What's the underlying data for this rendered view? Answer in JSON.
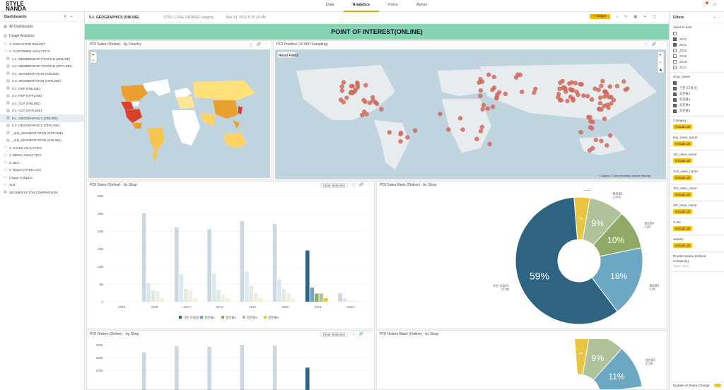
{
  "brand": {
    "logo_line1": "STYLE",
    "logo_line2": "NANDA"
  },
  "topnav": {
    "items": [
      "Data",
      "Analytics",
      "Pulse",
      "Admin"
    ],
    "active": "Analytics"
  },
  "sidebar": {
    "title": "Dashboards",
    "items": [
      {
        "label": "All Dashboards",
        "level": 0,
        "icon": "grid-icon"
      },
      {
        "label": "Usage Analytics",
        "level": 0,
        "icon": "chart-icon"
      },
      {
        "label": "1. EXECUTIVE INSIGHT",
        "level": 0,
        "icon": "folder-icon"
      },
      {
        "label": "2. CUSTOMER ANALYTICS",
        "level": 0,
        "icon": "folder-open-icon"
      },
      {
        "label": "1-1. MEMBERSHIP PROFILE (ONLINE)",
        "level": 1,
        "icon": "dashboard-icon"
      },
      {
        "label": "1-2. MEMBERSHIP PROFILE (OFFLINE)",
        "level": 1,
        "icon": "dashboard-icon"
      },
      {
        "label": "2-1. SEGMENTATION (ONLINE)",
        "level": 1,
        "icon": "dashboard-icon"
      },
      {
        "label": "2-2. SEGMENTATION (OFFLINE)",
        "level": 1,
        "icon": "dashboard-icon"
      },
      {
        "label": "3-1. RSP (ONLINE)",
        "level": 1,
        "icon": "dashboard-icon"
      },
      {
        "label": "3-2. RSP (OFFLINE)",
        "level": 1,
        "icon": "dashboard-icon"
      },
      {
        "label": "4-1. ACP (ONLINE)",
        "level": 1,
        "icon": "dashboard-icon"
      },
      {
        "label": "4-2. ACP (OFFLINE)",
        "level": 1,
        "icon": "dashboard-icon"
      },
      {
        "label": "5-1. GEOGRAPHICS (ONLINE)",
        "level": 1,
        "icon": "dashboard-icon",
        "active": true
      },
      {
        "label": "5-2. GEOGRAPHICS (OFFLINE)",
        "level": 1,
        "icon": "dashboard-icon"
      },
      {
        "label": "_drill_SEGMENTATION (OFFLINE)",
        "level": 1,
        "icon": "dashboard-icon"
      },
      {
        "label": "_drill_SEGMENTATION (ONLINE)",
        "level": 1,
        "icon": "dashboard-icon"
      },
      {
        "label": "3. SALES ANALYTICS",
        "level": 0,
        "icon": "folder-icon"
      },
      {
        "label": "4. MEDIA ANALYTICS",
        "level": 0,
        "icon": "folder-icon"
      },
      {
        "label": "5. BKC",
        "level": 0,
        "icon": "folder-icon"
      },
      {
        "label": "6. Report (STKD.com)",
        "level": 0,
        "icon": "folder-icon"
      },
      {
        "label": "Usage Analytics",
        "level": 0,
        "icon": "folder-icon"
      },
      {
        "label": "3CE",
        "level": 0,
        "icon": "folder-icon"
      },
      {
        "label": "SEGMENTATION COMPARISON",
        "level": 0,
        "icon": "dashboard-icon"
      }
    ]
  },
  "dashboard": {
    "title": "5-1. GEOGRAPHICS (ONLINE)",
    "datasource": "STND CORE DATASET-staging",
    "timestamp": "Mar 14, 2022 5:20:14 AM",
    "widget_button": "+ Widget",
    "banner": "POINT OF INTEREST(ONLINE)"
  },
  "panels": {
    "country": {
      "title": "POI Sales (Online) - by Country"
    },
    "position": {
      "title": "POI Position (10,000 Sampling)",
      "reset": "Reset Filters",
      "attribution": "© Mapbox © OpenStreetMap Improve this map"
    },
    "sales_shop": {
      "title": "POI Sales (Online) - by Shop",
      "clear": "Clear Selection"
    },
    "sales_ratio": {
      "title": "POI Sales Ratio (Online) - by Shop"
    },
    "orders_shop": {
      "title": "POI Orders (Online) - by Shop",
      "clear": "Clear Selection"
    },
    "orders_ratio": {
      "title": "POI Orders Ratio (Online) - by Shop"
    }
  },
  "colors": {
    "shop1": "#2e6482",
    "shop2": "#6ca8c4",
    "shop3": "#8faa66",
    "shop4": "#afc29a",
    "shop5": "#e8c440"
  },
  "chart_data": [
    {
      "type": "bar",
      "title": "POI Sales (Online) - by Shop",
      "categories": [
        "2015",
        "2016",
        "2017",
        "2018",
        "2019",
        "2020",
        "2021",
        "2022"
      ],
      "ylim": [
        0,
        30000000000
      ],
      "ytick_labels": [
        "0",
        "5B",
        "10B",
        "15B",
        "20B",
        "25B",
        "30B"
      ],
      "series": [
        {
          "name": "기본 (더블유)",
          "values": [
            0,
            25000000000,
            21000000000,
            20500000000,
            22800000000,
            22000000000,
            14500000000,
            2400000000
          ]
        },
        {
          "name": "쌈분몰2",
          "values": [
            0,
            5200000000,
            7800000000,
            8000000000,
            8500000000,
            6300000000,
            4000000000,
            1000000000
          ]
        },
        {
          "name": "쌈분몰4",
          "values": [
            0,
            3200000000,
            3600000000,
            3400000000,
            4500000000,
            3600000000,
            2300000000,
            300000000
          ]
        },
        {
          "name": "쌈분몰3",
          "values": [
            0,
            3000000000,
            3200000000,
            2000000000,
            2500000000,
            2600000000,
            2300000000,
            200000000
          ]
        },
        {
          "name": "쌈분몰5",
          "values": [
            0,
            1000000000,
            1000000000,
            1000000000,
            1100000000,
            900000000,
            1000000000,
            100000000
          ]
        }
      ]
    },
    {
      "type": "pie",
      "title": "POI Sales Ratio (Online) - by Shop",
      "slices": [
        {
          "name": "기본 (더블유)",
          "value_label": "17.3B",
          "percent": 59
        },
        {
          "name": "쌈분몰2",
          "value_label": "5.3B",
          "percent": 18
        },
        {
          "name": "쌈분몰4",
          "value_label": "3.0B",
          "percent": 10
        },
        {
          "name": "쌈분몰3",
          "value_label": "2.47B",
          "percent": 9
        },
        {
          "name": "쌈분몰5",
          "value_label": "1.1B",
          "percent": 4
        }
      ]
    },
    {
      "type": "bar",
      "title": "POI Orders (Online) - by Shop",
      "ylim": [
        0,
        300000
      ],
      "ytick_labels": [
        "200K",
        "250K",
        "300K"
      ],
      "series": [
        {
          "name": "기본 (더블유)",
          "values": [
            0,
            270000,
            295000,
            292000,
            300000,
            298000,
            210000,
            0
          ]
        }
      ]
    },
    {
      "type": "pie",
      "title": "POI Orders Ratio (Online) - by Shop",
      "slices": [
        {
          "name": "쌈분몰5",
          "value_label": "11.6K",
          "percent": 4
        },
        {
          "name": "쌈분몰3",
          "value_label": "31.5K",
          "percent": 9
        },
        {
          "name": "쌈분몰2",
          "value_label": "41.6K",
          "percent": 11
        }
      ]
    }
  ],
  "filters": {
    "title": "Filters",
    "years_label": "Years in date",
    "years": [
      {
        "y": "2022",
        "on": true
      },
      {
        "y": "2021",
        "on": true
      },
      {
        "y": "2020",
        "on": false
      },
      {
        "y": "2019",
        "on": false
      },
      {
        "y": "2018",
        "on": false
      },
      {
        "y": "2017",
        "on": false
      }
    ],
    "shop_label": "shop_name",
    "shops": [
      {
        "s": "기본 (더블유)",
        "on": true
      },
      {
        "s": "쌈분몰2",
        "on": true
      },
      {
        "s": "쌈분몰4",
        "on": true
      },
      {
        "s": "쌈분몰3",
        "on": true
      },
      {
        "s": "쌈분몰5",
        "on": true
      }
    ],
    "groups": [
      "Category",
      "key_class_name",
      "1st_class_name",
      "2nd_class_name",
      "3rd_class_name",
      "4th_class_name",
      "Color",
      "season"
    ],
    "include_all": "Include all",
    "product_label": "Product Name Refined",
    "containing": "Containing",
    "type_value": "Type value",
    "footer": "Update on Every Change"
  }
}
